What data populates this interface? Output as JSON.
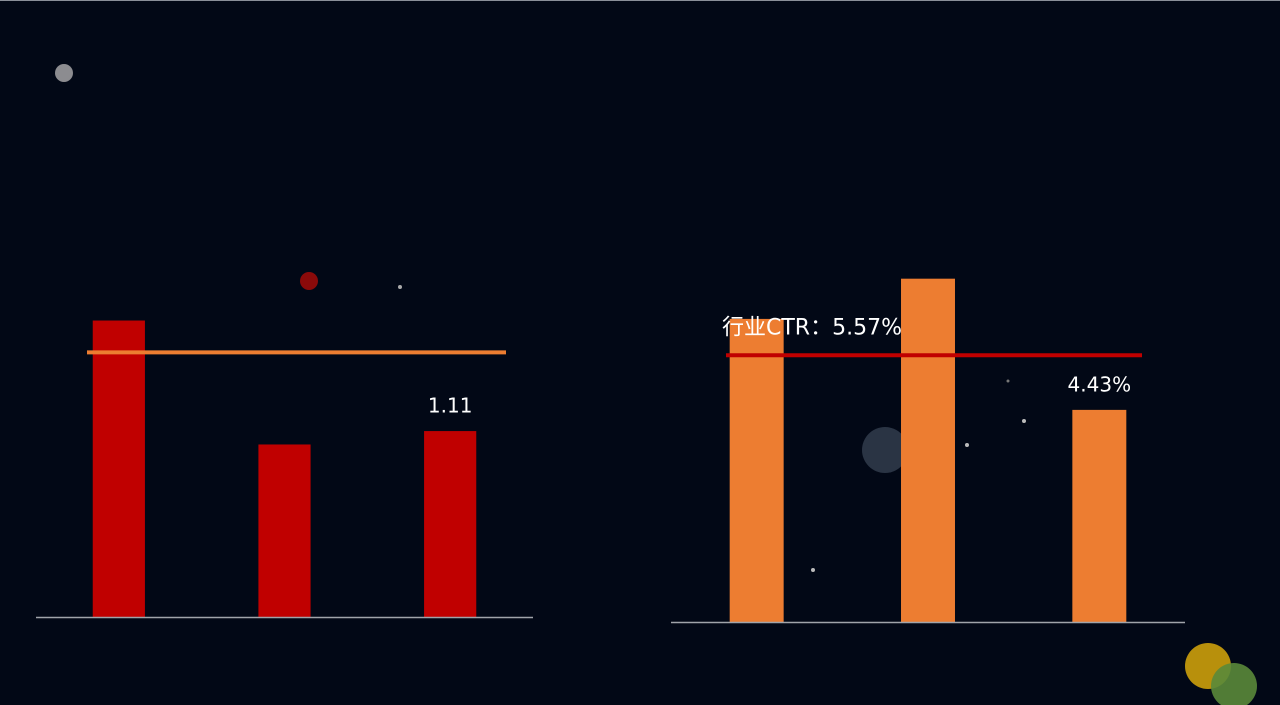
{
  "chart_data": [
    {
      "type": "bar",
      "categories": [
        null,
        null,
        null
      ],
      "values": [
        1.77,
        1.03,
        1.11
      ],
      "value_labels": [
        null,
        null,
        "1.11"
      ],
      "color": "#c00000",
      "ylim": [
        0,
        2.4
      ],
      "reference_line": {
        "value": 1.58,
        "color": "#ed7d31"
      }
    },
    {
      "type": "bar",
      "categories": [
        null,
        null,
        null
      ],
      "values": [
        6.33,
        7.17,
        4.43
      ],
      "value_labels": [
        null,
        null,
        "4.43%"
      ],
      "color": "#ed7d31",
      "ylim": [
        0,
        8.5
      ],
      "reference_line": {
        "value": 5.57,
        "label": "行业CTR：5.57%",
        "color": "#c00000"
      }
    }
  ]
}
